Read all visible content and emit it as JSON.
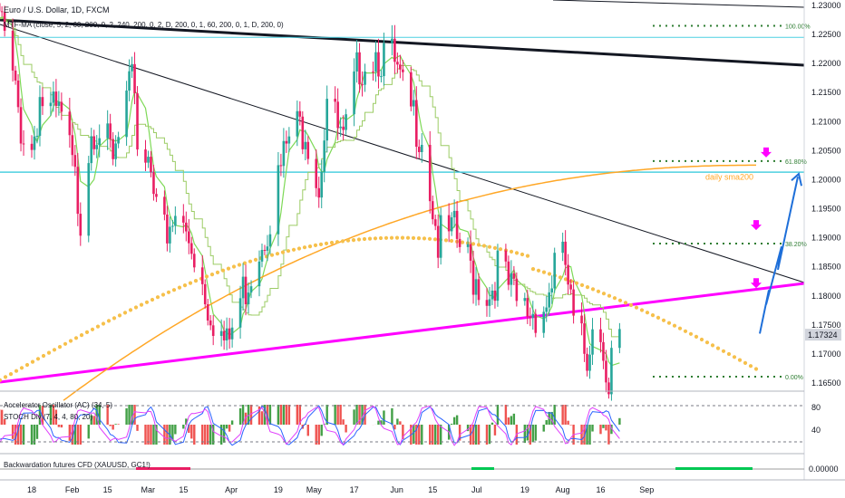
{
  "header": {
    "title": "Euro / U.S. Dollar, 1D, FXCM",
    "indicator": "MTF-MA (close, 5, 2, 60, 200, 0, 2, 240, 200, 0, 2, D, 200, 0, 1, 60, 200, 0, 1, D, 200, 0)"
  },
  "chart_data": {
    "type": "candlestick",
    "symbol": "EURUSD",
    "timeframe": "1D",
    "x_ticks": [
      "18",
      "Feb",
      "15",
      "Mar",
      "15",
      "Apr",
      "19",
      "May",
      "17",
      "Jun",
      "15",
      "Jul",
      "19",
      "Aug",
      "16",
      "Sep"
    ],
    "y_ticks": [
      1.165,
      1.17,
      1.175,
      1.18,
      1.185,
      1.19,
      1.195,
      1.2,
      1.205,
      1.21,
      1.215,
      1.22,
      1.225,
      1.23
    ],
    "ylim": [
      1.163,
      1.232
    ],
    "last_price": "1.17324",
    "last_price_value": 1.17324,
    "fib_levels": [
      {
        "label": "100.00%",
        "value": 1.2265
      },
      {
        "label": "61.80%",
        "value": 1.2032
      },
      {
        "label": "38.20%",
        "value": 1.189
      },
      {
        "label": "0.00%",
        "value": 1.1661
      }
    ],
    "annotations": {
      "daily_sma": "daily sma200"
    },
    "anchors": [
      {
        "month": "Jan",
        "day": 4,
        "close": 1.226
      },
      {
        "month": "Jan",
        "day": 6,
        "close": 1.231
      },
      {
        "month": "Jan",
        "day": 11,
        "close": 1.219
      },
      {
        "month": "Jan",
        "day": 14,
        "close": 1.2115
      },
      {
        "month": "Jan",
        "day": 18,
        "close": 1.2075
      },
      {
        "month": "Jan",
        "day": 21,
        "close": 1.2165
      },
      {
        "month": "Jan",
        "day": 25,
        "close": 1.2135
      },
      {
        "month": "Jan",
        "day": 29,
        "close": 1.2125
      },
      {
        "month": "Feb",
        "day": 1,
        "close": 1.2065
      },
      {
        "month": "Feb",
        "day": 5,
        "close": 1.1965
      },
      {
        "month": "Feb",
        "day": 9,
        "close": 1.212
      },
      {
        "month": "Feb",
        "day": 12,
        "close": 1.212
      },
      {
        "month": "Feb",
        "day": 17,
        "close": 1.2045
      },
      {
        "month": "Feb",
        "day": 22,
        "close": 1.215
      },
      {
        "month": "Feb",
        "day": 25,
        "close": 1.2195
      },
      {
        "month": "Feb",
        "day": 26,
        "close": 1.2085
      },
      {
        "month": "Mar",
        "day": 3,
        "close": 1.206
      },
      {
        "month": "Mar",
        "day": 9,
        "close": 1.19
      },
      {
        "month": "Mar",
        "day": 12,
        "close": 1.1955
      },
      {
        "month": "Mar",
        "day": 18,
        "close": 1.1915
      },
      {
        "month": "Mar",
        "day": 24,
        "close": 1.1815
      },
      {
        "month": "Mar",
        "day": 31,
        "close": 1.173
      },
      {
        "month": "Apr",
        "day": 5,
        "close": 1.1815
      },
      {
        "month": "Apr",
        "day": 12,
        "close": 1.191
      },
      {
        "month": "Apr",
        "day": 16,
        "close": 1.1965
      },
      {
        "month": "Apr",
        "day": 23,
        "close": 1.2095
      },
      {
        "month": "Apr",
        "day": 29,
        "close": 1.212
      },
      {
        "month": "May",
        "day": 4,
        "close": 1.2015
      },
      {
        "month": "May",
        "day": 7,
        "close": 1.2165
      },
      {
        "month": "May",
        "day": 13,
        "close": 1.2075
      },
      {
        "month": "May",
        "day": 19,
        "close": 1.2225
      },
      {
        "month": "May",
        "day": 25,
        "close": 1.2245
      },
      {
        "month": "May",
        "day": 31,
        "close": 1.2225
      },
      {
        "month": "Jun",
        "day": 4,
        "close": 1.2165
      },
      {
        "month": "Jun",
        "day": 11,
        "close": 1.2105
      },
      {
        "month": "Jun",
        "day": 17,
        "close": 1.1915
      },
      {
        "month": "Jun",
        "day": 23,
        "close": 1.1925
      },
      {
        "month": "Jun",
        "day": 30,
        "close": 1.186
      },
      {
        "month": "Jul",
        "day": 6,
        "close": 1.1825
      },
      {
        "month": "Jul",
        "day": 9,
        "close": 1.1875
      },
      {
        "month": "Jul",
        "day": 16,
        "close": 1.1805
      },
      {
        "month": "Jul",
        "day": 21,
        "close": 1.1795
      },
      {
        "month": "Jul",
        "day": 27,
        "close": 1.181
      },
      {
        "month": "Jul",
        "day": 30,
        "close": 1.1875
      },
      {
        "month": "Aug",
        "day": 3,
        "close": 1.1875
      },
      {
        "month": "Aug",
        "day": 6,
        "close": 1.1765
      },
      {
        "month": "Aug",
        "day": 11,
        "close": 1.1715
      },
      {
        "month": "Aug",
        "day": 13,
        "close": 1.1795
      },
      {
        "month": "Aug",
        "day": 18,
        "close": 1.1715
      },
      {
        "month": "Aug",
        "day": 19,
        "close": 1.1675
      },
      {
        "month": "Aug",
        "day": 20,
        "close": 1.1725
      },
      {
        "month": "Aug",
        "day": 23,
        "close": 1.1745
      }
    ]
  },
  "panes": {
    "ac_label": "Accelerator Oscillator (AC) (34, 5)",
    "stoch_label": "STOCH Div (7, 4, 4, 80, 20)",
    "stoch_ticks": [
      "80",
      "40"
    ],
    "bw_label": "Backwardation futures CFD (XAUUSD, GC1!)",
    "bw_value": "0.00000"
  },
  "colors": {
    "bull": "#26a69a",
    "bear": "#e91e63",
    "magenta": "#ff00ff",
    "cyan": "#4dd0e1",
    "sma": "#ffa726",
    "green_ma": "#7ed957",
    "fib": "#2e7d32",
    "arrow": "#1e6fd9"
  }
}
